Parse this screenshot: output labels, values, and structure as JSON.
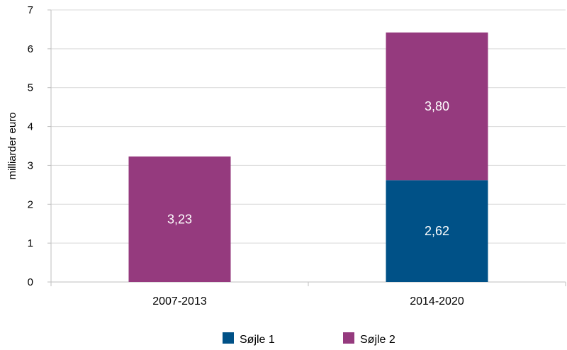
{
  "chart_data": {
    "type": "bar",
    "stacked": true,
    "categories": [
      "2007-2013",
      "2014-2020"
    ],
    "series": [
      {
        "name": "Søjle 1",
        "values": [
          0,
          2.62
        ],
        "labels": [
          "",
          "2,62"
        ],
        "color": "#005187"
      },
      {
        "name": "Søjle 2",
        "values": [
          3.23,
          3.8
        ],
        "labels": [
          "3,23",
          "3,80"
        ],
        "color": "#953A7E"
      }
    ],
    "title": "",
    "xlabel": "",
    "ylabel": "milliarder euro",
    "ylim": [
      0,
      7
    ],
    "yticks": [
      "0",
      "1",
      "2",
      "3",
      "4",
      "5",
      "6",
      "7"
    ],
    "grid": true,
    "legend_position": "bottom"
  }
}
